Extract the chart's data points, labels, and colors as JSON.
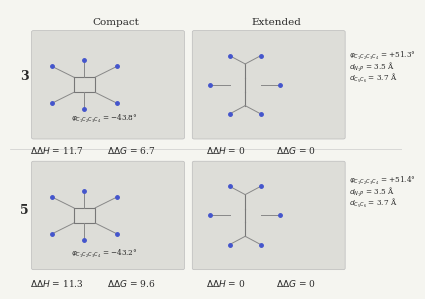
{
  "title_compact": "Compact",
  "title_extended": "Extended",
  "compound_labels": [
    "3",
    "5"
  ],
  "row1": {
    "compact": {
      "phi": "= −43.8°",
      "ddH_val": "11.7",
      "ddG_val": "6.7"
    },
    "extended": {
      "phi": "= +51.3°",
      "dNIP": "= 3.5 Å",
      "dC5C6": "= 3.7 Å",
      "ddH_val": "0",
      "ddG_val": "0"
    }
  },
  "row2": {
    "compact": {
      "phi": "= −43.2°",
      "ddH_val": "11.3",
      "ddG_val": "9.6"
    },
    "extended": {
      "phi": "= +51.4°",
      "dNIP": "= 3.5 Å",
      "dC5C6": "= 3.7 Å",
      "ddH_val": "0",
      "ddG_val": "0"
    }
  },
  "bg_color": "#f5f5f0",
  "text_color": "#2a2a2a",
  "font_size_title": 7.5,
  "font_size_label": 6.5,
  "font_size_compound": 9.0,
  "font_size_annotation": 5.2
}
